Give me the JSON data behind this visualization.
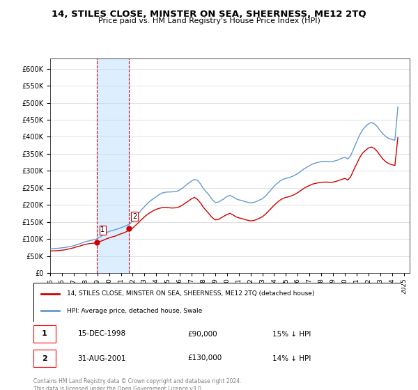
{
  "title": "14, STILES CLOSE, MINSTER ON SEA, SHEERNESS, ME12 2TQ",
  "subtitle": "Price paid vs. HM Land Registry's House Price Index (HPI)",
  "ylabel_format": "£{0}K",
  "yticks": [
    0,
    50000,
    100000,
    150000,
    200000,
    250000,
    300000,
    350000,
    400000,
    450000,
    500000,
    550000,
    600000
  ],
  "ylim": [
    0,
    630000
  ],
  "xlim_start": 1995.0,
  "xlim_end": 2025.5,
  "legend_line1": "14, STILES CLOSE, MINSTER ON SEA, SHEERNESS, ME12 2TQ (detached house)",
  "legend_line2": "HPI: Average price, detached house, Swale",
  "transaction1_label": "1",
  "transaction1_date": "15-DEC-1998",
  "transaction1_price": "£90,000",
  "transaction1_hpi": "15% ↓ HPI",
  "transaction1_x": 1998.96,
  "transaction1_y": 90000,
  "transaction2_label": "2",
  "transaction2_date": "31-AUG-2001",
  "transaction2_price": "£130,000",
  "transaction2_hpi": "14% ↓ HPI",
  "transaction2_x": 2001.67,
  "transaction2_y": 130000,
  "hpi_color": "#6699cc",
  "price_color": "#cc0000",
  "highlight_color": "#ddeeff",
  "box_color": "#ffcccc",
  "copyright_text": "Contains HM Land Registry data © Crown copyright and database right 2024.\nThis data is licensed under the Open Government Licence v3.0.",
  "hpi_data_x": [
    1995.0,
    1995.25,
    1995.5,
    1995.75,
    1996.0,
    1996.25,
    1996.5,
    1996.75,
    1997.0,
    1997.25,
    1997.5,
    1997.75,
    1998.0,
    1998.25,
    1998.5,
    1998.75,
    1999.0,
    1999.25,
    1999.5,
    1999.75,
    2000.0,
    2000.25,
    2000.5,
    2000.75,
    2001.0,
    2001.25,
    2001.5,
    2001.75,
    2002.0,
    2002.25,
    2002.5,
    2002.75,
    2003.0,
    2003.25,
    2003.5,
    2003.75,
    2004.0,
    2004.25,
    2004.5,
    2004.75,
    2005.0,
    2005.25,
    2005.5,
    2005.75,
    2006.0,
    2006.25,
    2006.5,
    2006.75,
    2007.0,
    2007.25,
    2007.5,
    2007.75,
    2008.0,
    2008.25,
    2008.5,
    2008.75,
    2009.0,
    2009.25,
    2009.5,
    2009.75,
    2010.0,
    2010.25,
    2010.5,
    2010.75,
    2011.0,
    2011.25,
    2011.5,
    2011.75,
    2012.0,
    2012.25,
    2012.5,
    2012.75,
    2013.0,
    2013.25,
    2013.5,
    2013.75,
    2014.0,
    2014.25,
    2014.5,
    2014.75,
    2015.0,
    2015.25,
    2015.5,
    2015.75,
    2016.0,
    2016.25,
    2016.5,
    2016.75,
    2017.0,
    2017.25,
    2017.5,
    2017.75,
    2018.0,
    2018.25,
    2018.5,
    2018.75,
    2019.0,
    2019.25,
    2019.5,
    2019.75,
    2020.0,
    2020.25,
    2020.5,
    2020.75,
    2021.0,
    2021.25,
    2021.5,
    2021.75,
    2022.0,
    2022.25,
    2022.5,
    2022.75,
    2023.0,
    2023.25,
    2023.5,
    2023.75,
    2024.0,
    2024.25,
    2024.5
  ],
  "hpi_data_y": [
    72000,
    71500,
    72000,
    73000,
    74000,
    75000,
    76500,
    78000,
    80000,
    83000,
    86000,
    89000,
    92000,
    94000,
    96000,
    98000,
    101000,
    106000,
    112000,
    118000,
    122000,
    125000,
    127000,
    130000,
    133000,
    136000,
    140000,
    144000,
    152000,
    163000,
    175000,
    186000,
    195000,
    204000,
    212000,
    218000,
    224000,
    230000,
    235000,
    237000,
    238000,
    238000,
    239000,
    240000,
    244000,
    250000,
    257000,
    264000,
    270000,
    275000,
    272000,
    262000,
    248000,
    238000,
    228000,
    216000,
    207000,
    208000,
    213000,
    218000,
    225000,
    228000,
    224000,
    218000,
    215000,
    213000,
    210000,
    208000,
    206000,
    207000,
    210000,
    214000,
    218000,
    225000,
    235000,
    245000,
    255000,
    263000,
    270000,
    275000,
    278000,
    280000,
    283000,
    287000,
    292000,
    298000,
    305000,
    310000,
    315000,
    320000,
    323000,
    325000,
    327000,
    328000,
    328000,
    327000,
    328000,
    330000,
    333000,
    337000,
    340000,
    335000,
    345000,
    365000,
    385000,
    405000,
    420000,
    430000,
    438000,
    442000,
    438000,
    430000,
    418000,
    408000,
    400000,
    395000,
    392000,
    390000,
    488000
  ],
  "price_data_x": [
    1995.0,
    1995.25,
    1995.5,
    1995.75,
    1996.0,
    1996.25,
    1996.5,
    1996.75,
    1997.0,
    1997.25,
    1997.5,
    1997.75,
    1998.0,
    1998.25,
    1998.5,
    1998.75,
    1999.0,
    1999.25,
    1999.5,
    1999.75,
    2000.0,
    2000.25,
    2000.5,
    2000.75,
    2001.0,
    2001.25,
    2001.5,
    2001.75,
    2002.0,
    2002.25,
    2002.5,
    2002.75,
    2003.0,
    2003.25,
    2003.5,
    2003.75,
    2004.0,
    2004.25,
    2004.5,
    2004.75,
    2005.0,
    2005.25,
    2005.5,
    2005.75,
    2006.0,
    2006.25,
    2006.5,
    2006.75,
    2007.0,
    2007.25,
    2007.5,
    2007.75,
    2008.0,
    2008.25,
    2008.5,
    2008.75,
    2009.0,
    2009.25,
    2009.5,
    2009.75,
    2010.0,
    2010.25,
    2010.5,
    2010.75,
    2011.0,
    2011.25,
    2011.5,
    2011.75,
    2012.0,
    2012.25,
    2012.5,
    2012.75,
    2013.0,
    2013.25,
    2013.5,
    2013.75,
    2014.0,
    2014.25,
    2014.5,
    2014.75,
    2015.0,
    2015.25,
    2015.5,
    2015.75,
    2016.0,
    2016.25,
    2016.5,
    2016.75,
    2017.0,
    2017.25,
    2017.5,
    2017.75,
    2018.0,
    2018.25,
    2018.5,
    2018.75,
    2019.0,
    2019.25,
    2019.5,
    2019.75,
    2020.0,
    2020.25,
    2020.5,
    2020.75,
    2021.0,
    2021.25,
    2021.5,
    2021.75,
    2022.0,
    2022.25,
    2022.5,
    2022.75,
    2023.0,
    2023.25,
    2023.5,
    2023.75,
    2024.0,
    2024.25,
    2024.5
  ],
  "price_data_y": [
    65000,
    65000,
    65500,
    66000,
    67000,
    68000,
    70000,
    72000,
    74000,
    77000,
    79000,
    82000,
    84000,
    86000,
    87000,
    88000,
    90000,
    93000,
    96000,
    100000,
    103000,
    106000,
    108000,
    112000,
    115000,
    118000,
    122000,
    127000,
    132000,
    140000,
    148000,
    157000,
    165000,
    172000,
    178000,
    183000,
    187000,
    190000,
    192000,
    193000,
    192000,
    191000,
    191000,
    192000,
    195000,
    200000,
    206000,
    212000,
    218000,
    222000,
    216000,
    206000,
    193000,
    183000,
    173000,
    163000,
    156000,
    157000,
    162000,
    167000,
    172000,
    175000,
    171000,
    165000,
    162000,
    160000,
    157000,
    155000,
    153000,
    154000,
    157000,
    161000,
    165000,
    172000,
    181000,
    190000,
    199000,
    207000,
    214000,
    219000,
    222000,
    224000,
    227000,
    231000,
    236000,
    242000,
    248000,
    253000,
    257000,
    261000,
    263000,
    265000,
    266000,
    267000,
    267000,
    266000,
    267000,
    269000,
    272000,
    275000,
    278000,
    273000,
    283000,
    302000,
    320000,
    338000,
    352000,
    360000,
    367000,
    370000,
    366000,
    357000,
    345000,
    334000,
    326000,
    321000,
    318000,
    316000,
    398000
  ]
}
